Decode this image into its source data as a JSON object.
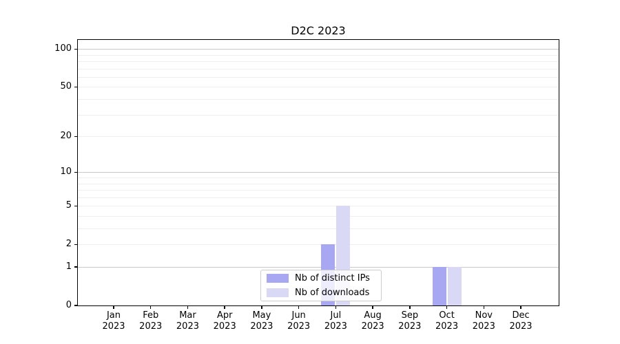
{
  "chart_data": {
    "type": "bar",
    "title": "D2C 2023",
    "categories": [
      "Jan 2023",
      "Feb 2023",
      "Mar 2023",
      "Apr 2023",
      "May 2023",
      "Jun 2023",
      "Jul 2023",
      "Aug 2023",
      "Sep 2023",
      "Oct 2023",
      "Nov 2023",
      "Dec 2023"
    ],
    "series": [
      {
        "name": "Nb of distinct IPs",
        "color": "#a7a7f2",
        "values": [
          0,
          0,
          0,
          0,
          0,
          0,
          2,
          0,
          0,
          1,
          0,
          0
        ]
      },
      {
        "name": "Nb of downloads",
        "color": "#d9d9f5",
        "values": [
          0,
          0,
          0,
          0,
          0,
          0,
          5,
          0,
          0,
          1,
          0,
          0
        ]
      }
    ],
    "xlabel": "",
    "ylabel": "",
    "y_axis": {
      "scale": "log1p",
      "labeled_ticks": [
        0,
        1,
        2,
        5,
        10,
        20,
        50,
        100
      ],
      "range": [
        0,
        118
      ]
    },
    "gridlines": {
      "major": [
        1,
        10,
        100
      ],
      "minor": [
        2,
        3,
        4,
        5,
        6,
        7,
        8,
        9,
        20,
        30,
        40,
        50,
        60,
        70,
        80,
        90
      ],
      "orientation": "horizontal"
    },
    "legend": {
      "position": "lower-center-inside"
    }
  }
}
